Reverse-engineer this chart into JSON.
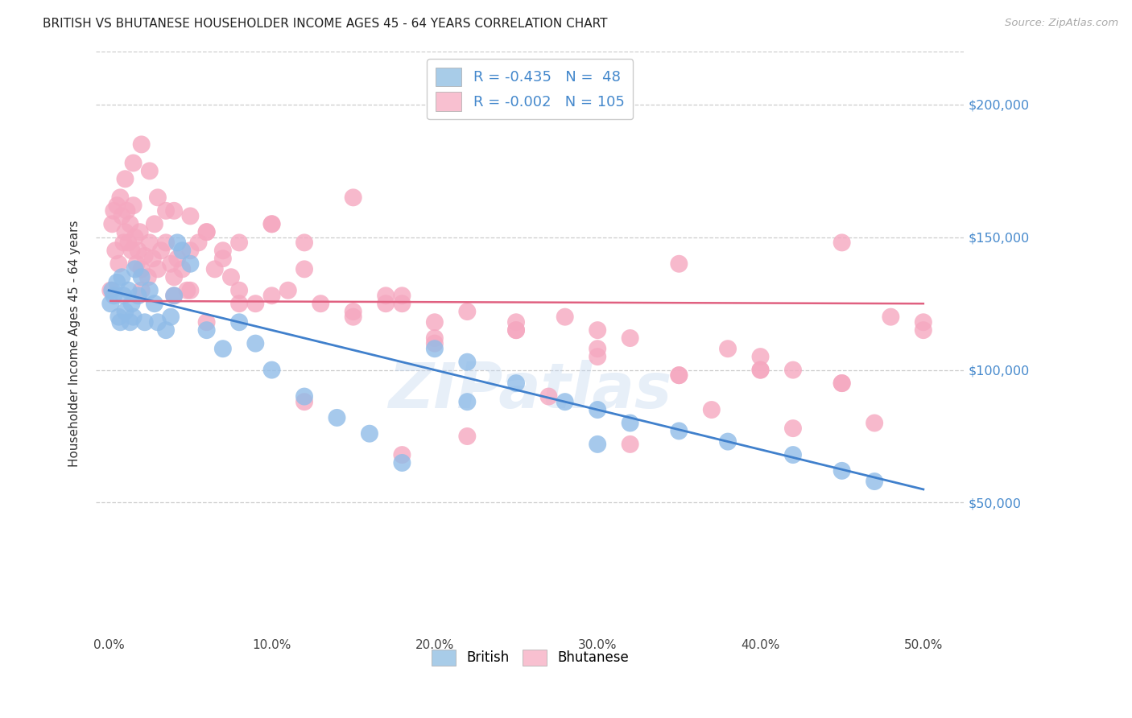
{
  "title": "BRITISH VS BHUTANESE HOUSEHOLDER INCOME AGES 45 - 64 YEARS CORRELATION CHART",
  "source": "Source: ZipAtlas.com",
  "ylabel": "Householder Income Ages 45 - 64 years",
  "xtick_labels": [
    "0.0%",
    "10.0%",
    "20.0%",
    "30.0%",
    "40.0%",
    "50.0%"
  ],
  "xtick_vals": [
    0.0,
    0.1,
    0.2,
    0.3,
    0.4,
    0.5
  ],
  "ytick_labels": [
    "$50,000",
    "$100,000",
    "$150,000",
    "$200,000"
  ],
  "ytick_vals": [
    50000,
    100000,
    150000,
    200000
  ],
  "ylim": [
    0,
    220000
  ],
  "xlim": [
    -0.008,
    0.525
  ],
  "british_color": "#90bce8",
  "bhutanese_color": "#f5a8c0",
  "british_line_color": "#4080cc",
  "bhutanese_line_color": "#e06080",
  "british_legend_color": "#a8cce8",
  "bhutanese_legend_color": "#f8c0d0",
  "legend_text_color": "#4488cc",
  "legend_label_1": "R = -0.435   N =  48",
  "legend_label_2": "R = -0.002   N = 105",
  "bottom_legend_british": "British",
  "bottom_legend_bhutanese": "Bhutanese",
  "watermark": "ZIPatlas",
  "british_line_x0": 0.0,
  "british_line_y0": 130000,
  "british_line_x1": 0.5,
  "british_line_y1": 55000,
  "bhutanese_line_x0": 0.001,
  "bhutanese_line_y0": 126000,
  "bhutanese_line_x1": 0.5,
  "bhutanese_line_y1": 125000,
  "british_x": [
    0.001,
    0.002,
    0.003,
    0.005,
    0.006,
    0.007,
    0.008,
    0.009,
    0.01,
    0.012,
    0.013,
    0.014,
    0.015,
    0.016,
    0.018,
    0.02,
    0.022,
    0.025,
    0.028,
    0.03,
    0.035,
    0.038,
    0.04,
    0.042,
    0.045,
    0.05,
    0.06,
    0.07,
    0.08,
    0.09,
    0.1,
    0.12,
    0.14,
    0.16,
    0.18,
    0.2,
    0.22,
    0.25,
    0.28,
    0.3,
    0.32,
    0.35,
    0.38,
    0.42,
    0.45,
    0.22,
    0.3,
    0.47
  ],
  "british_y": [
    125000,
    130000,
    128000,
    133000,
    120000,
    118000,
    135000,
    128000,
    122000,
    130000,
    118000,
    125000,
    120000,
    138000,
    128000,
    135000,
    118000,
    130000,
    125000,
    118000,
    115000,
    120000,
    128000,
    148000,
    145000,
    140000,
    115000,
    108000,
    118000,
    110000,
    100000,
    90000,
    82000,
    76000,
    65000,
    108000,
    103000,
    95000,
    88000,
    85000,
    80000,
    77000,
    73000,
    68000,
    62000,
    88000,
    72000,
    58000
  ],
  "bhutanese_x": [
    0.001,
    0.002,
    0.003,
    0.004,
    0.005,
    0.006,
    0.007,
    0.008,
    0.009,
    0.01,
    0.011,
    0.012,
    0.013,
    0.014,
    0.015,
    0.016,
    0.017,
    0.018,
    0.019,
    0.02,
    0.022,
    0.024,
    0.025,
    0.027,
    0.028,
    0.03,
    0.032,
    0.035,
    0.038,
    0.04,
    0.042,
    0.045,
    0.048,
    0.05,
    0.055,
    0.06,
    0.065,
    0.07,
    0.075,
    0.08,
    0.09,
    0.1,
    0.11,
    0.12,
    0.13,
    0.15,
    0.17,
    0.18,
    0.2,
    0.22,
    0.25,
    0.28,
    0.3,
    0.32,
    0.35,
    0.38,
    0.4,
    0.42,
    0.45,
    0.48,
    0.5,
    0.01,
    0.015,
    0.02,
    0.025,
    0.03,
    0.035,
    0.04,
    0.05,
    0.06,
    0.08,
    0.1,
    0.12,
    0.15,
    0.18,
    0.2,
    0.25,
    0.3,
    0.35,
    0.4,
    0.45,
    0.5,
    0.02,
    0.04,
    0.06,
    0.1,
    0.15,
    0.2,
    0.25,
    0.3,
    0.35,
    0.4,
    0.45,
    0.05,
    0.12,
    0.22,
    0.32,
    0.42,
    0.07,
    0.17,
    0.27,
    0.37,
    0.47,
    0.08,
    0.18
  ],
  "bhutanese_y": [
    130000,
    155000,
    160000,
    145000,
    162000,
    140000,
    165000,
    158000,
    148000,
    152000,
    160000,
    148000,
    155000,
    145000,
    162000,
    150000,
    140000,
    145000,
    152000,
    138000,
    143000,
    135000,
    148000,
    142000,
    155000,
    138000,
    145000,
    148000,
    140000,
    135000,
    142000,
    138000,
    130000,
    145000,
    148000,
    152000,
    138000,
    142000,
    135000,
    125000,
    125000,
    128000,
    130000,
    138000,
    125000,
    120000,
    128000,
    125000,
    118000,
    122000,
    118000,
    120000,
    115000,
    112000,
    140000,
    108000,
    105000,
    100000,
    148000,
    120000,
    118000,
    172000,
    178000,
    185000,
    175000,
    165000,
    160000,
    160000,
    158000,
    152000,
    148000,
    155000,
    148000,
    122000,
    128000,
    112000,
    115000,
    108000,
    98000,
    100000,
    95000,
    115000,
    130000,
    128000,
    118000,
    155000,
    165000,
    110000,
    115000,
    105000,
    98000,
    100000,
    95000,
    130000,
    88000,
    75000,
    72000,
    78000,
    145000,
    125000,
    90000,
    85000,
    80000,
    130000,
    68000
  ]
}
